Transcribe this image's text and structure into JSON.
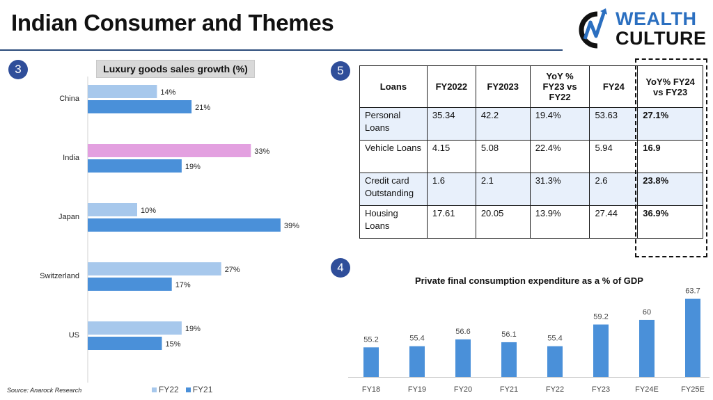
{
  "page_title": "Indian Consumer and Themes",
  "logo": {
    "line1": "WEALTH",
    "line2": "CULTURE"
  },
  "badges": {
    "luxury": "3",
    "loans": "5",
    "gdp": "4"
  },
  "source_note": "Source: Anarock Research",
  "colors": {
    "fy22": "#a7c8ec",
    "fy21": "#4a90d9",
    "india_fy22": "#e3a0e0",
    "gdp_bar": "#4a90d9",
    "accent": "#2f4e9a",
    "row_shade": "#e8f0fb"
  },
  "chart_data": [
    {
      "type": "bar",
      "orientation": "horizontal",
      "title": "Luxury goods sales growth (%)",
      "categories": [
        "China",
        "India",
        "Japan",
        "Switzerland",
        "US"
      ],
      "series": [
        {
          "name": "FY22",
          "values": [
            14,
            33,
            10,
            27,
            19
          ],
          "labels": [
            "14%",
            "33%",
            "10%",
            "27%",
            "19%"
          ]
        },
        {
          "name": "FY21",
          "values": [
            21,
            19,
            39,
            17,
            15
          ],
          "labels": [
            "21%",
            "19%",
            "39%",
            "17%",
            "15%"
          ]
        }
      ],
      "legend": [
        "FY22",
        "FY21"
      ],
      "legend_position": "bottom",
      "xlim": [
        0,
        45
      ]
    },
    {
      "type": "bar",
      "orientation": "vertical",
      "title": "Private final consumption expenditure as a % of GDP",
      "categories": [
        "FY18",
        "FY19",
        "FY20",
        "FY21",
        "FY22",
        "FY23",
        "FY24E",
        "FY25E"
      ],
      "values": [
        55.2,
        55.4,
        56.6,
        56.1,
        55.4,
        59.2,
        60,
        63.7
      ],
      "labels": [
        "55.2",
        "55.4",
        "56.6",
        "56.1",
        "55.4",
        "59.2",
        "60",
        "63.7"
      ],
      "ylim": [
        50,
        64.5
      ]
    }
  ],
  "loans_table": {
    "headers": [
      "Loans",
      "FY2022",
      "FY2023",
      "YoY % FY23 vs FY22",
      "FY24",
      "YoY% FY24 vs FY23"
    ],
    "rows": [
      [
        "Personal Loans",
        "35.34",
        "42.2",
        "19.4%",
        "53.63",
        "27.1%"
      ],
      [
        "Vehicle Loans",
        "4.15",
        "5.08",
        "22.4%",
        "5.94",
        "16.9"
      ],
      [
        "Credit card Outstanding",
        "1.6",
        "2.1",
        "31.3%",
        "2.6",
        "23.8%"
      ],
      [
        "Housing Loans",
        "17.61",
        "20.05",
        "13.9%",
        "27.44",
        "36.9%"
      ]
    ]
  }
}
